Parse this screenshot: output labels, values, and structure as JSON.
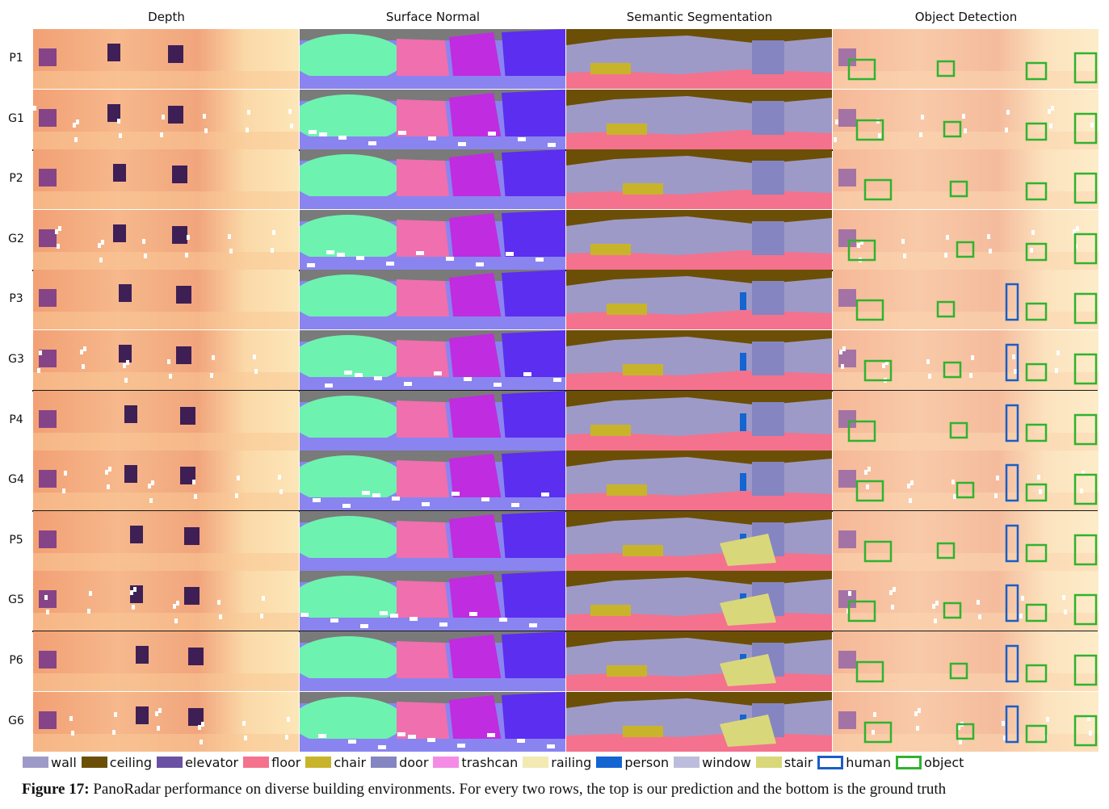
{
  "columns": [
    "Depth",
    "Surface Normal",
    "Semantic Segmentation",
    "Object Detection"
  ],
  "rows": [
    "P1",
    "G1",
    "P2",
    "G2",
    "P3",
    "G3",
    "P4",
    "G4",
    "P5",
    "G5",
    "P6",
    "G6"
  ],
  "legend": [
    {
      "label": "wall",
      "color": "#9e9ac8",
      "style": "fill"
    },
    {
      "label": "ceiling",
      "color": "#6b4f06",
      "style": "fill"
    },
    {
      "label": "elevator",
      "color": "#6a51a3",
      "style": "fill"
    },
    {
      "label": "floor",
      "color": "#f4728d",
      "style": "fill"
    },
    {
      "label": "chair",
      "color": "#c8b42a",
      "style": "fill"
    },
    {
      "label": "door",
      "color": "#8585c2",
      "style": "fill"
    },
    {
      "label": "trashcan",
      "color": "#f48ce6",
      "style": "fill"
    },
    {
      "label": "railing",
      "color": "#f2eab2",
      "style": "fill"
    },
    {
      "label": "person",
      "color": "#1464d2",
      "style": "fill"
    },
    {
      "label": "window",
      "color": "#bcbcdc",
      "style": "fill"
    },
    {
      "label": "stair",
      "color": "#d8d87a",
      "style": "fill"
    },
    {
      "label": "human",
      "color": "#1a5ec8",
      "style": "box"
    },
    {
      "label": "object",
      "color": "#2fb32f",
      "style": "box"
    }
  ],
  "caption": {
    "label": "Figure 17:",
    "text": " PanoRadar performance on diverse building environments. For every two rows, the top is our prediction and the bottom is the ground truth"
  }
}
